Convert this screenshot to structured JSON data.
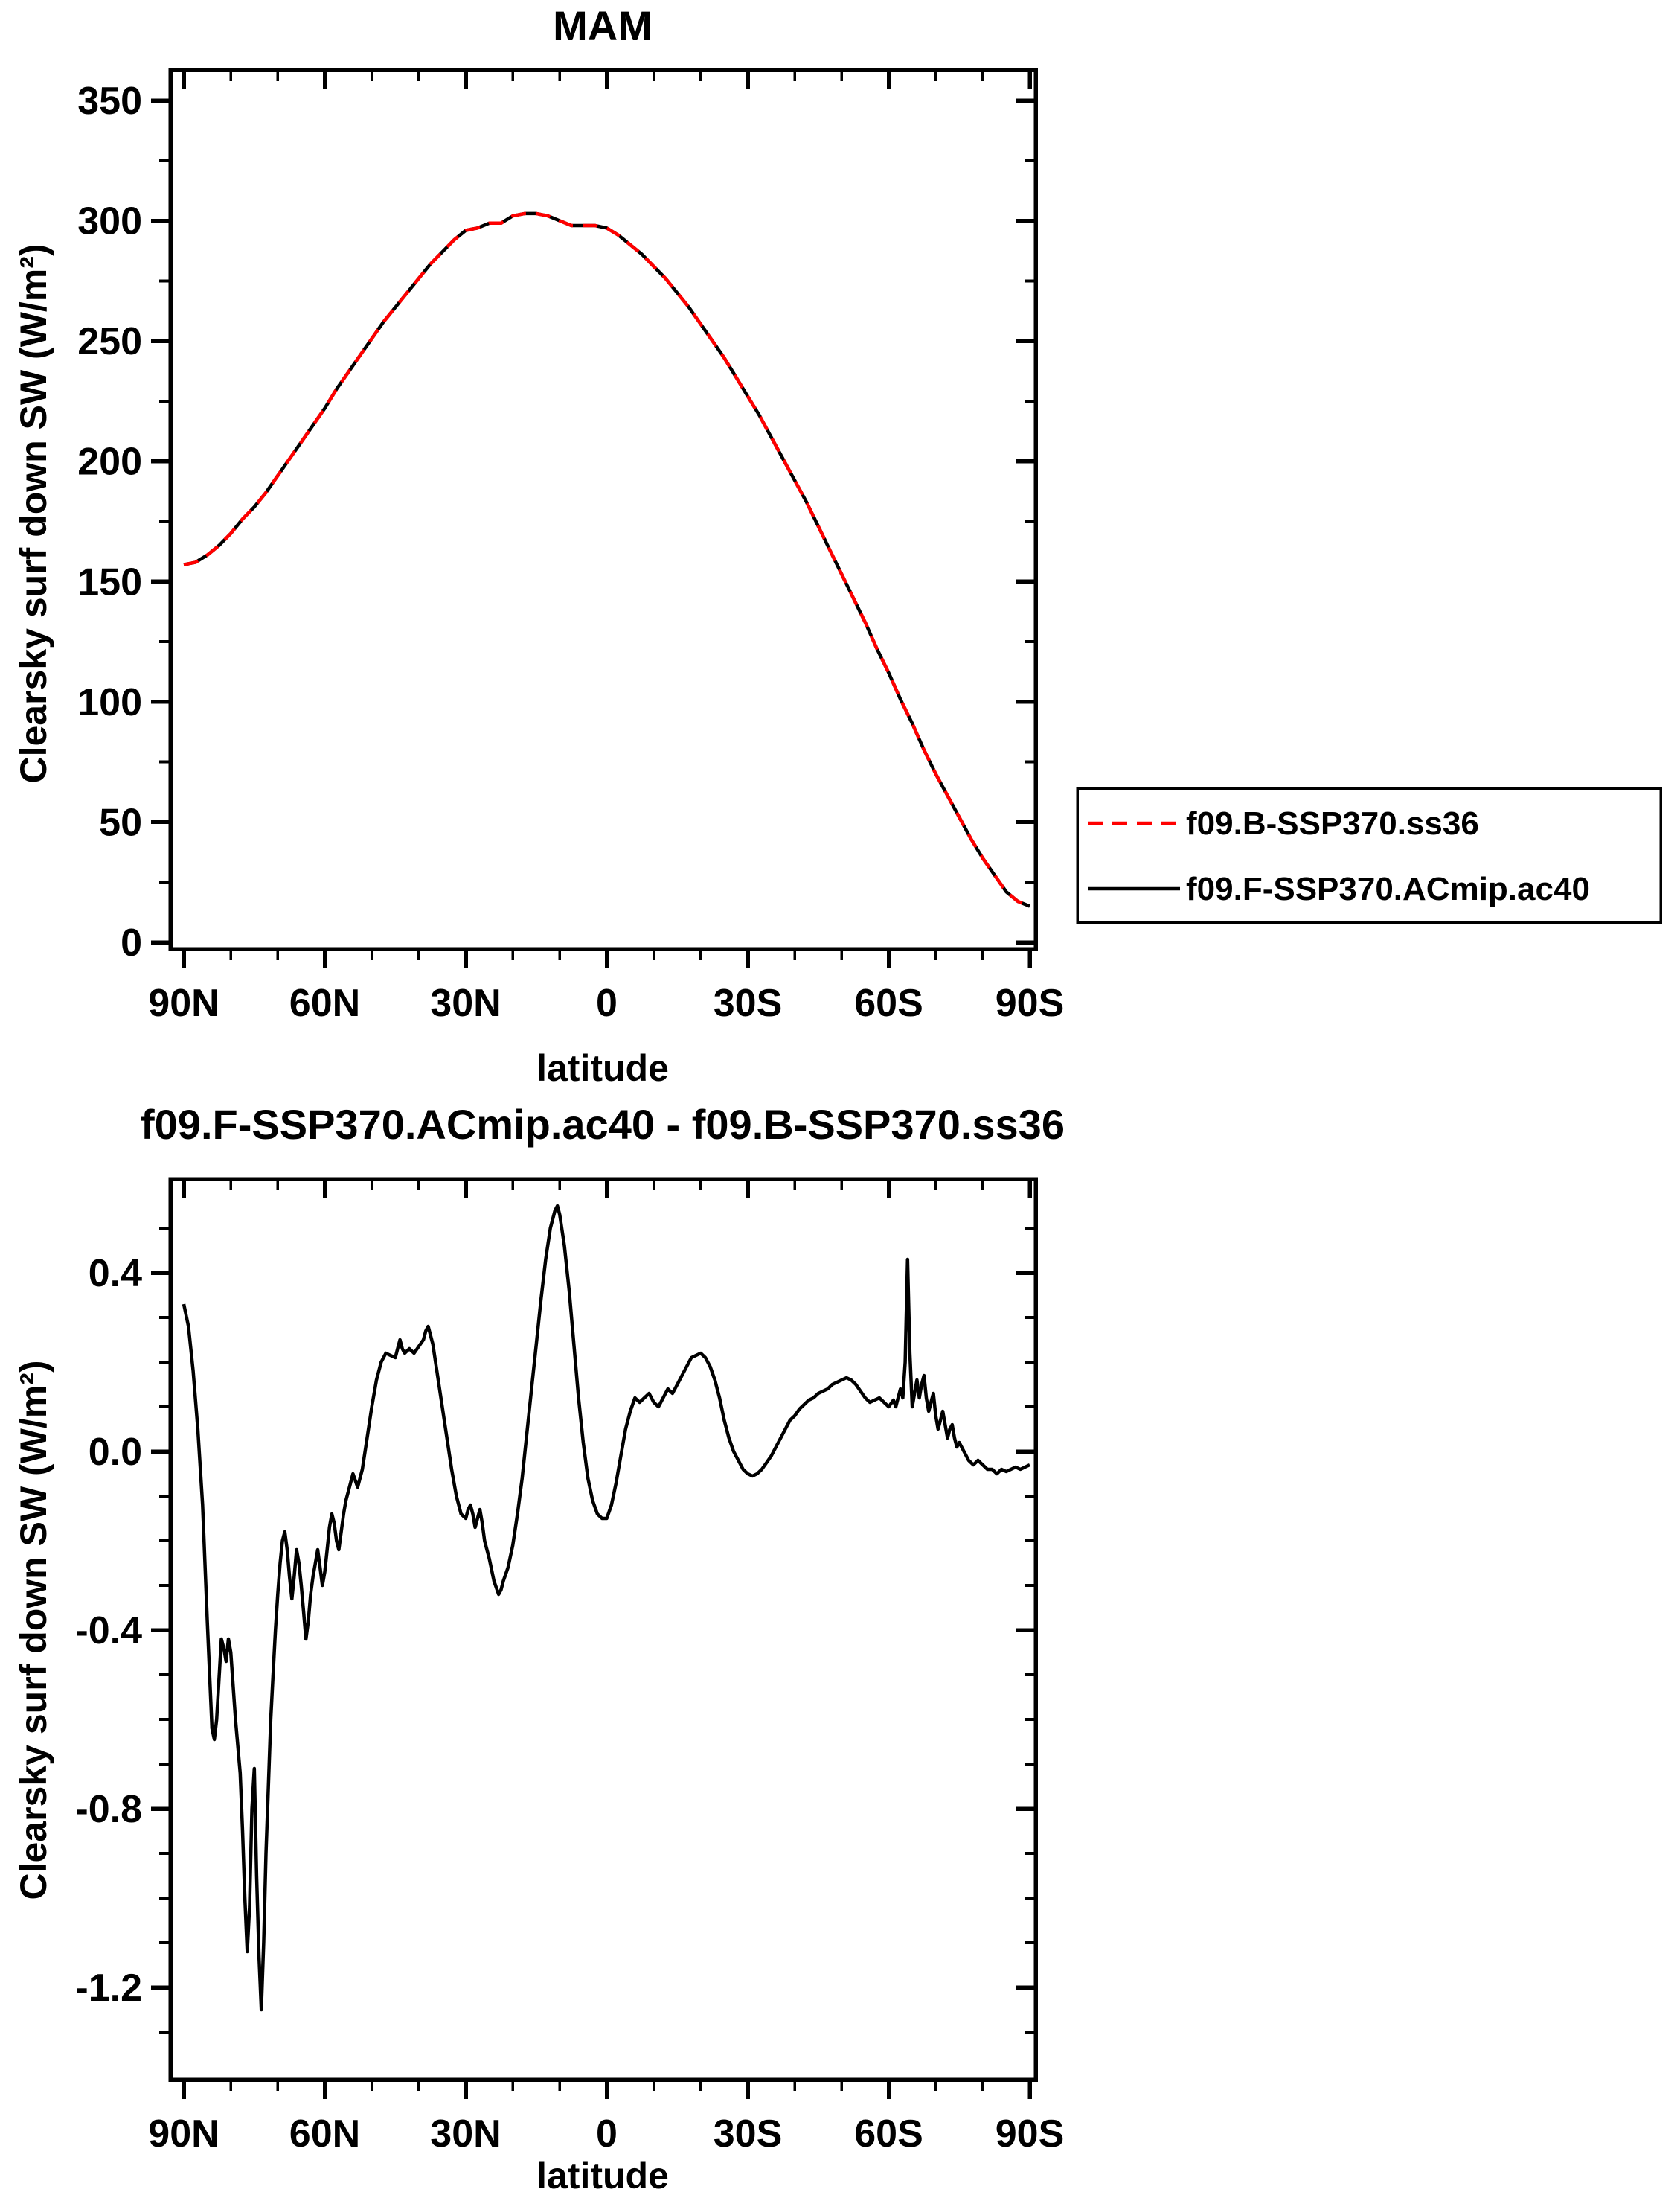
{
  "figure": {
    "background": "#ffffff"
  },
  "chart_data": {
    "top_chart": {
      "type": "line",
      "title": "MAM",
      "xlabel": "latitude",
      "ylabel": "Clearsky surf down SW (W/m²)",
      "xlim": [
        90,
        -90
      ],
      "ylim": [
        0,
        350
      ],
      "grid": false,
      "legend_position": "outside-right-bottom",
      "xticks": {
        "values": [
          90,
          60,
          30,
          0,
          -30,
          -60,
          -90
        ],
        "labels": [
          "90N",
          "60N",
          "30N",
          "0",
          "30S",
          "60S",
          "90S"
        ]
      },
      "xminor": [
        80,
        70,
        50,
        40,
        20,
        10,
        -10,
        -20,
        -40,
        -50,
        -70,
        -80
      ],
      "yticks": {
        "values": [
          0,
          50,
          100,
          150,
          200,
          250,
          300,
          350
        ],
        "labels": [
          "0",
          "50",
          "100",
          "150",
          "200",
          "250",
          "300",
          "350"
        ]
      },
      "yminor": [
        25,
        75,
        125,
        175,
        225,
        275,
        325
      ],
      "lat": [
        90,
        87.5,
        85,
        82.5,
        80,
        77.5,
        75,
        72.5,
        70,
        67.5,
        65,
        62.5,
        60,
        57.5,
        55,
        52.5,
        50,
        47.5,
        45,
        42.5,
        40,
        37.5,
        35,
        32.5,
        30,
        27.5,
        25,
        22.5,
        20,
        17.5,
        15,
        12.5,
        10,
        7.5,
        5,
        2.5,
        0,
        -2.5,
        -5,
        -7.5,
        -10,
        -12.5,
        -15,
        -17.5,
        -20,
        -22.5,
        -25,
        -27.5,
        -30,
        -32.5,
        -35,
        -37.5,
        -40,
        -42.5,
        -45,
        -47.5,
        -50,
        -52.5,
        -55,
        -57.5,
        -60,
        -62.5,
        -65,
        -67.5,
        -70,
        -72.5,
        -75,
        -77.5,
        -80,
        -82.5,
        -85,
        -87.5,
        -90
      ],
      "series": [
        {
          "name": "f09.B-SSP370.ss36",
          "color": "#ff0000",
          "style": "dashed",
          "values": [
            157,
            158,
            161,
            165,
            170,
            176,
            181,
            187,
            194,
            201,
            208,
            215,
            222,
            230,
            237,
            244,
            251,
            258,
            264,
            270,
            276,
            282,
            287,
            292,
            296,
            297,
            299,
            299,
            302,
            303,
            303,
            302,
            300,
            298,
            298,
            298,
            297,
            294,
            290,
            286,
            281,
            276,
            270,
            264,
            257,
            250,
            243,
            235,
            227,
            219,
            210,
            201,
            192,
            183,
            173,
            163,
            153,
            143,
            133,
            122,
            112,
            101,
            91,
            80,
            70,
            61,
            52,
            43,
            35,
            28,
            21,
            17,
            15
          ]
        },
        {
          "name": "f09.F-SSP370.ACmip.ac40",
          "color": "#000000",
          "style": "solid",
          "values": [
            157,
            158,
            161,
            165,
            170,
            176,
            181,
            187,
            194,
            201,
            208,
            215,
            222,
            230,
            237,
            244,
            251,
            258,
            264,
            270,
            276,
            282,
            287,
            292,
            296,
            297,
            299,
            299,
            302,
            303,
            303,
            302,
            300,
            298,
            298,
            298,
            297,
            294,
            290,
            286,
            281,
            276,
            270,
            264,
            257,
            250,
            243,
            235,
            227,
            219,
            210,
            201,
            192,
            183,
            173,
            163,
            153,
            143,
            133,
            122,
            112,
            101,
            91,
            80,
            70,
            61,
            52,
            43,
            35,
            28,
            21,
            17,
            15
          ]
        }
      ]
    },
    "bottom_chart": {
      "type": "line",
      "title": "f09.F-SSP370.ACmip.ac40 - f09.B-SSP370.ss36",
      "xlabel": "latitude",
      "ylabel": "Clearsky surf down SW (W/m²)",
      "xlim": [
        90,
        -90
      ],
      "ylim": [
        -1.41,
        0.61
      ],
      "grid": false,
      "line_color": "#000000",
      "xticks": {
        "values": [
          90,
          60,
          30,
          0,
          -30,
          -60,
          -90
        ],
        "labels": [
          "90N",
          "60N",
          "30N",
          "0",
          "30S",
          "60S",
          "90S"
        ]
      },
      "xminor": [
        80,
        70,
        50,
        40,
        20,
        10,
        -10,
        -20,
        -40,
        -50,
        -70,
        -80
      ],
      "yticks": {
        "values": [
          0.4,
          0.0,
          -0.4,
          -0.8,
          -1.2
        ],
        "labels": [
          "0.4",
          "0.0",
          "-0.4",
          "-0.8",
          "-1.2"
        ]
      },
      "yminor": [
        0.5,
        0.3,
        0.2,
        0.1,
        -0.1,
        -0.2,
        -0.3,
        -0.5,
        -0.6,
        -0.7,
        -0.9,
        -1.0,
        -1.1,
        -1.3
      ],
      "points": [
        [
          90,
          0.33
        ],
        [
          89,
          0.28
        ],
        [
          88,
          0.18
        ],
        [
          87,
          0.05
        ],
        [
          86,
          -0.12
        ],
        [
          85,
          -0.38
        ],
        [
          84,
          -0.62
        ],
        [
          83.5,
          -0.645
        ],
        [
          83,
          -0.6
        ],
        [
          82,
          -0.42
        ],
        [
          81.5,
          -0.44
        ],
        [
          81,
          -0.47
        ],
        [
          80.5,
          -0.42
        ],
        [
          80,
          -0.45
        ],
        [
          79,
          -0.6
        ],
        [
          78,
          -0.72
        ],
        [
          77.5,
          -0.85
        ],
        [
          77,
          -1.0
        ],
        [
          76.5,
          -1.12
        ],
        [
          76,
          -1.02
        ],
        [
          75.5,
          -0.8
        ],
        [
          75,
          -0.71
        ],
        [
          74.5,
          -0.95
        ],
        [
          74,
          -1.13
        ],
        [
          73.5,
          -1.25
        ],
        [
          73,
          -1.1
        ],
        [
          72.5,
          -0.9
        ],
        [
          72,
          -0.75
        ],
        [
          71.5,
          -0.6
        ],
        [
          71,
          -0.5
        ],
        [
          70.5,
          -0.4
        ],
        [
          70,
          -0.32
        ],
        [
          69.5,
          -0.25
        ],
        [
          69,
          -0.2
        ],
        [
          68.5,
          -0.18
        ],
        [
          68,
          -0.22
        ],
        [
          67.5,
          -0.28
        ],
        [
          67,
          -0.33
        ],
        [
          66.5,
          -0.28
        ],
        [
          66,
          -0.22
        ],
        [
          65.5,
          -0.25
        ],
        [
          65,
          -0.3
        ],
        [
          64.5,
          -0.36
        ],
        [
          64,
          -0.42
        ],
        [
          63.5,
          -0.38
        ],
        [
          63,
          -0.32
        ],
        [
          62.5,
          -0.28
        ],
        [
          62,
          -0.25
        ],
        [
          61.5,
          -0.22
        ],
        [
          61,
          -0.26
        ],
        [
          60.5,
          -0.3
        ],
        [
          60,
          -0.27
        ],
        [
          59.5,
          -0.22
        ],
        [
          59,
          -0.17
        ],
        [
          58.5,
          -0.14
        ],
        [
          58,
          -0.16
        ],
        [
          57.5,
          -0.2
        ],
        [
          57,
          -0.22
        ],
        [
          56.5,
          -0.18
        ],
        [
          56,
          -0.14
        ],
        [
          55.5,
          -0.11
        ],
        [
          55,
          -0.09
        ],
        [
          54,
          -0.05
        ],
        [
          53,
          -0.08
        ],
        [
          52,
          -0.04
        ],
        [
          51,
          0.03
        ],
        [
          50,
          0.1
        ],
        [
          49,
          0.16
        ],
        [
          48,
          0.2
        ],
        [
          47,
          0.22
        ],
        [
          46,
          0.215
        ],
        [
          45,
          0.21
        ],
        [
          44.5,
          0.23
        ],
        [
          44,
          0.25
        ],
        [
          43.5,
          0.23
        ],
        [
          43,
          0.22
        ],
        [
          42,
          0.23
        ],
        [
          41,
          0.22
        ],
        [
          40,
          0.235
        ],
        [
          39,
          0.25
        ],
        [
          38.5,
          0.27
        ],
        [
          38,
          0.28
        ],
        [
          37,
          0.24
        ],
        [
          36,
          0.17
        ],
        [
          35,
          0.1
        ],
        [
          34,
          0.03
        ],
        [
          33,
          -0.04
        ],
        [
          32,
          -0.1
        ],
        [
          31,
          -0.14
        ],
        [
          30,
          -0.15
        ],
        [
          29.5,
          -0.13
        ],
        [
          29,
          -0.12
        ],
        [
          28.5,
          -0.14
        ],
        [
          28,
          -0.17
        ],
        [
          27.5,
          -0.15
        ],
        [
          27,
          -0.13
        ],
        [
          26.5,
          -0.16
        ],
        [
          26,
          -0.2
        ],
        [
          25,
          -0.24
        ],
        [
          24,
          -0.29
        ],
        [
          23,
          -0.32
        ],
        [
          22.5,
          -0.31
        ],
        [
          22,
          -0.29
        ],
        [
          21,
          -0.26
        ],
        [
          20,
          -0.21
        ],
        [
          19,
          -0.14
        ],
        [
          18,
          -0.06
        ],
        [
          17,
          0.04
        ],
        [
          16,
          0.14
        ],
        [
          15,
          0.24
        ],
        [
          14,
          0.34
        ],
        [
          13,
          0.43
        ],
        [
          12,
          0.5
        ],
        [
          11,
          0.54
        ],
        [
          10.5,
          0.55
        ],
        [
          10,
          0.53
        ],
        [
          9,
          0.46
        ],
        [
          8,
          0.36
        ],
        [
          7,
          0.24
        ],
        [
          6,
          0.12
        ],
        [
          5,
          0.02
        ],
        [
          4,
          -0.06
        ],
        [
          3,
          -0.11
        ],
        [
          2,
          -0.14
        ],
        [
          1,
          -0.15
        ],
        [
          0,
          -0.15
        ],
        [
          -1,
          -0.12
        ],
        [
          -2,
          -0.07
        ],
        [
          -3,
          -0.01
        ],
        [
          -4,
          0.05
        ],
        [
          -5,
          0.09
        ],
        [
          -6,
          0.12
        ],
        [
          -7,
          0.11
        ],
        [
          -8,
          0.12
        ],
        [
          -9,
          0.13
        ],
        [
          -10,
          0.11
        ],
        [
          -11,
          0.1
        ],
        [
          -12,
          0.12
        ],
        [
          -13,
          0.14
        ],
        [
          -14,
          0.13
        ],
        [
          -15,
          0.15
        ],
        [
          -16,
          0.17
        ],
        [
          -17,
          0.19
        ],
        [
          -18,
          0.21
        ],
        [
          -19,
          0.215
        ],
        [
          -20,
          0.22
        ],
        [
          -21,
          0.21
        ],
        [
          -22,
          0.19
        ],
        [
          -23,
          0.16
        ],
        [
          -24,
          0.12
        ],
        [
          -25,
          0.07
        ],
        [
          -26,
          0.03
        ],
        [
          -27,
          0.0
        ],
        [
          -28,
          -0.02
        ],
        [
          -29,
          -0.04
        ],
        [
          -30,
          -0.05
        ],
        [
          -31,
          -0.055
        ],
        [
          -32,
          -0.05
        ],
        [
          -33,
          -0.04
        ],
        [
          -34,
          -0.025
        ],
        [
          -35,
          -0.01
        ],
        [
          -36,
          0.01
        ],
        [
          -37,
          0.03
        ],
        [
          -38,
          0.05
        ],
        [
          -39,
          0.07
        ],
        [
          -40,
          0.08
        ],
        [
          -41,
          0.095
        ],
        [
          -42,
          0.105
        ],
        [
          -43,
          0.115
        ],
        [
          -44,
          0.12
        ],
        [
          -45,
          0.13
        ],
        [
          -46,
          0.135
        ],
        [
          -47,
          0.14
        ],
        [
          -48,
          0.15
        ],
        [
          -49,
          0.155
        ],
        [
          -50,
          0.16
        ],
        [
          -51,
          0.165
        ],
        [
          -52,
          0.16
        ],
        [
          -53,
          0.15
        ],
        [
          -54,
          0.135
        ],
        [
          -55,
          0.12
        ],
        [
          -56,
          0.11
        ],
        [
          -57,
          0.115
        ],
        [
          -58,
          0.12
        ],
        [
          -59,
          0.11
        ],
        [
          -60,
          0.1
        ],
        [
          -61,
          0.115
        ],
        [
          -61.5,
          0.1
        ],
        [
          -62,
          0.12
        ],
        [
          -62.5,
          0.14
        ],
        [
          -63,
          0.12
        ],
        [
          -63.5,
          0.2
        ],
        [
          -64,
          0.43
        ],
        [
          -64.5,
          0.22
        ],
        [
          -65,
          0.1
        ],
        [
          -65.5,
          0.13
        ],
        [
          -66,
          0.16
        ],
        [
          -66.5,
          0.12
        ],
        [
          -67,
          0.15
        ],
        [
          -67.5,
          0.17
        ],
        [
          -68,
          0.12
        ],
        [
          -68.5,
          0.09
        ],
        [
          -69,
          0.11
        ],
        [
          -69.5,
          0.13
        ],
        [
          -70,
          0.08
        ],
        [
          -70.5,
          0.05
        ],
        [
          -71,
          0.07
        ],
        [
          -71.5,
          0.09
        ],
        [
          -72,
          0.06
        ],
        [
          -72.5,
          0.03
        ],
        [
          -73,
          0.05
        ],
        [
          -73.5,
          0.06
        ],
        [
          -74,
          0.03
        ],
        [
          -74.5,
          0.01
        ],
        [
          -75,
          0.02
        ],
        [
          -76,
          0.0
        ],
        [
          -77,
          -0.02
        ],
        [
          -78,
          -0.03
        ],
        [
          -79,
          -0.02
        ],
        [
          -80,
          -0.03
        ],
        [
          -81,
          -0.04
        ],
        [
          -82,
          -0.04
        ],
        [
          -83,
          -0.05
        ],
        [
          -84,
          -0.04
        ],
        [
          -85,
          -0.045
        ],
        [
          -86,
          -0.04
        ],
        [
          -87,
          -0.035
        ],
        [
          -88,
          -0.04
        ],
        [
          -89,
          -0.035
        ],
        [
          -90,
          -0.03
        ]
      ]
    }
  }
}
